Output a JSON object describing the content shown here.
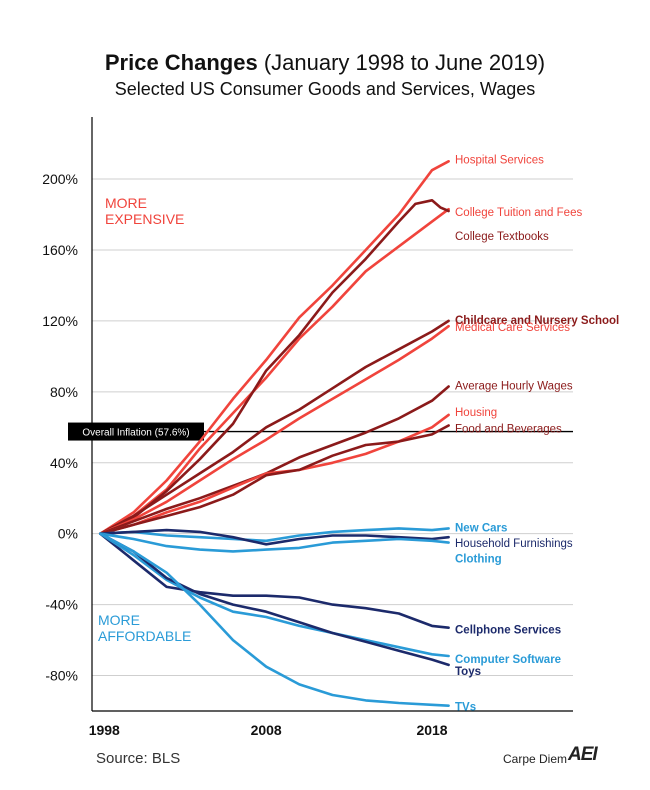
{
  "title_bold": "Price Changes",
  "title_rest": " (January 1998 to June 2019)",
  "subtitle": "Selected US Consumer Goods and Services, Wages",
  "source": "Source: BLS",
  "brand": "Carpe Diem",
  "brand_logo": "AEI",
  "colors": {
    "red": "#f0443c",
    "dark_red": "#8b1a1a",
    "blue": "#2a9bd7",
    "navy": "#1c2a6b",
    "inflation": "#000000"
  },
  "chart_data": {
    "type": "line",
    "title": "Price Changes (January 1998 to June 2019)",
    "subtitle": "Selected US Consumer Goods and Services, Wages",
    "xlim": [
      1997.5,
      2026.5
    ],
    "ylim": [
      -100,
      235
    ],
    "y_ticks": [
      -80,
      -40,
      0,
      40,
      80,
      120,
      160,
      200
    ],
    "y_tick_labels": [
      "-80%",
      "-40%",
      "0%",
      "40%",
      "80%",
      "120%",
      "160%",
      "200%"
    ],
    "x_ticks": [
      1998,
      2008,
      2018
    ],
    "x_tick_labels": [
      "1998",
      "2008",
      "2018"
    ],
    "annotations": {
      "more_expensive": [
        "MORE",
        "EXPENSIVE"
      ],
      "more_affordable": [
        "MORE",
        "AFFORDABLE"
      ]
    },
    "inflation": {
      "value": 57.6,
      "label": "Overall Inflation (57.6%)"
    },
    "series": [
      {
        "name": "Hospital Services",
        "color": "#f0443c",
        "bold": false,
        "x": [
          1998,
          2000,
          2002,
          2004,
          2006,
          2008,
          2010,
          2012,
          2014,
          2016,
          2018,
          2019
        ],
        "y": [
          0,
          12,
          30,
          52,
          76,
          98,
          122,
          140,
          160,
          180,
          205,
          210
        ]
      },
      {
        "name": "College Tuition and Fees",
        "color": "#f0443c",
        "bold": false,
        "x": [
          1998,
          2000,
          2002,
          2004,
          2006,
          2008,
          2010,
          2012,
          2014,
          2016,
          2018,
          2019
        ],
        "y": [
          0,
          10,
          25,
          48,
          68,
          88,
          110,
          128,
          148,
          162,
          176,
          183
        ]
      },
      {
        "name": "College Textbooks",
        "color": "#8b1a1a",
        "bold": false,
        "x": [
          1998,
          2000,
          2002,
          2004,
          2006,
          2008,
          2010,
          2012,
          2014,
          2016,
          2017,
          2018,
          2018.5,
          2019
        ],
        "y": [
          0,
          9,
          24,
          42,
          62,
          92,
          112,
          136,
          155,
          176,
          186,
          188,
          184,
          182
        ]
      },
      {
        "name": "Childcare and Nursery School",
        "color": "#8b1a1a",
        "bold": true,
        "x": [
          1998,
          2000,
          2002,
          2004,
          2006,
          2008,
          2010,
          2012,
          2014,
          2016,
          2018,
          2019
        ],
        "y": [
          0,
          10,
          22,
          34,
          46,
          60,
          70,
          82,
          94,
          104,
          114,
          120
        ]
      },
      {
        "name": "Medical Care Services",
        "color": "#f0443c",
        "bold": false,
        "x": [
          1998,
          2000,
          2002,
          2004,
          2006,
          2008,
          2010,
          2012,
          2014,
          2016,
          2018,
          2019
        ],
        "y": [
          0,
          8,
          18,
          30,
          42,
          53,
          65,
          76,
          87,
          98,
          110,
          117
        ]
      },
      {
        "name": "Average Hourly Wages",
        "color": "#8b1a1a",
        "bold": false,
        "x": [
          1998,
          2000,
          2002,
          2004,
          2006,
          2008,
          2010,
          2012,
          2014,
          2016,
          2018,
          2019
        ],
        "y": [
          0,
          7,
          14,
          20,
          27,
          34,
          43,
          50,
          57,
          65,
          75,
          83
        ]
      },
      {
        "name": "Housing",
        "color": "#f0443c",
        "bold": false,
        "x": [
          1998,
          2000,
          2002,
          2004,
          2006,
          2008,
          2010,
          2012,
          2014,
          2016,
          2018,
          2019
        ],
        "y": [
          0,
          5,
          12,
          18,
          26,
          34,
          36,
          40,
          45,
          52,
          60,
          67
        ]
      },
      {
        "name": "Food and Beverages",
        "color": "#8b1a1a",
        "bold": false,
        "x": [
          1998,
          2000,
          2002,
          2004,
          2006,
          2008,
          2010,
          2012,
          2014,
          2016,
          2018,
          2019
        ],
        "y": [
          0,
          5,
          10,
          15,
          22,
          33,
          36,
          44,
          50,
          52,
          56,
          61
        ]
      },
      {
        "name": "New Cars",
        "color": "#2a9bd7",
        "bold": true,
        "x": [
          1998,
          2000,
          2002,
          2004,
          2006,
          2008,
          2010,
          2012,
          2014,
          2016,
          2018,
          2019
        ],
        "y": [
          0,
          1,
          -1,
          -2,
          -3,
          -4,
          -1,
          1,
          2,
          3,
          2,
          3
        ]
      },
      {
        "name": "Household Furnishings",
        "color": "#1c2a6b",
        "bold": false,
        "x": [
          1998,
          2000,
          2002,
          2004,
          2006,
          2008,
          2010,
          2012,
          2014,
          2016,
          2018,
          2019
        ],
        "y": [
          0,
          1,
          2,
          1,
          -2,
          -6,
          -3,
          -1,
          -1,
          -2,
          -3,
          -2
        ]
      },
      {
        "name": "Clothing",
        "color": "#2a9bd7",
        "bold": true,
        "x": [
          1998,
          2000,
          2002,
          2004,
          2006,
          2008,
          2010,
          2012,
          2014,
          2016,
          2018,
          2019
        ],
        "y": [
          0,
          -3,
          -7,
          -9,
          -10,
          -9,
          -8,
          -5,
          -4,
          -3,
          -4,
          -5
        ]
      },
      {
        "name": "Cellphone Services",
        "color": "#1c2a6b",
        "bold": true,
        "x": [
          1998,
          2000,
          2002,
          2004,
          2006,
          2008,
          2010,
          2012,
          2014,
          2016,
          2018,
          2019
        ],
        "y": [
          0,
          -15,
          -30,
          -33,
          -35,
          -35,
          -36,
          -40,
          -42,
          -45,
          -52,
          -53
        ]
      },
      {
        "name": "Computer Software",
        "color": "#2a9bd7",
        "bold": true,
        "x": [
          1998,
          2000,
          2002,
          2004,
          2006,
          2008,
          2010,
          2012,
          2014,
          2016,
          2018,
          2019
        ],
        "y": [
          0,
          -12,
          -26,
          -36,
          -44,
          -47,
          -52,
          -56,
          -60,
          -64,
          -68,
          -69
        ]
      },
      {
        "name": "Toys",
        "color": "#1c2a6b",
        "bold": true,
        "x": [
          1998,
          2000,
          2002,
          2004,
          2006,
          2008,
          2010,
          2012,
          2014,
          2016,
          2018,
          2019
        ],
        "y": [
          0,
          -10,
          -25,
          -34,
          -40,
          -44,
          -50,
          -56,
          -61,
          -66,
          -71,
          -74
        ]
      },
      {
        "name": "TVs",
        "color": "#2a9bd7",
        "bold": true,
        "x": [
          1998,
          2000,
          2002,
          2004,
          2006,
          2008,
          2010,
          2012,
          2014,
          2016,
          2018,
          2019
        ],
        "y": [
          0,
          -10,
          -22,
          -40,
          -60,
          -75,
          -85,
          -91,
          -94,
          -95.5,
          -96.5,
          -97
        ]
      }
    ]
  }
}
